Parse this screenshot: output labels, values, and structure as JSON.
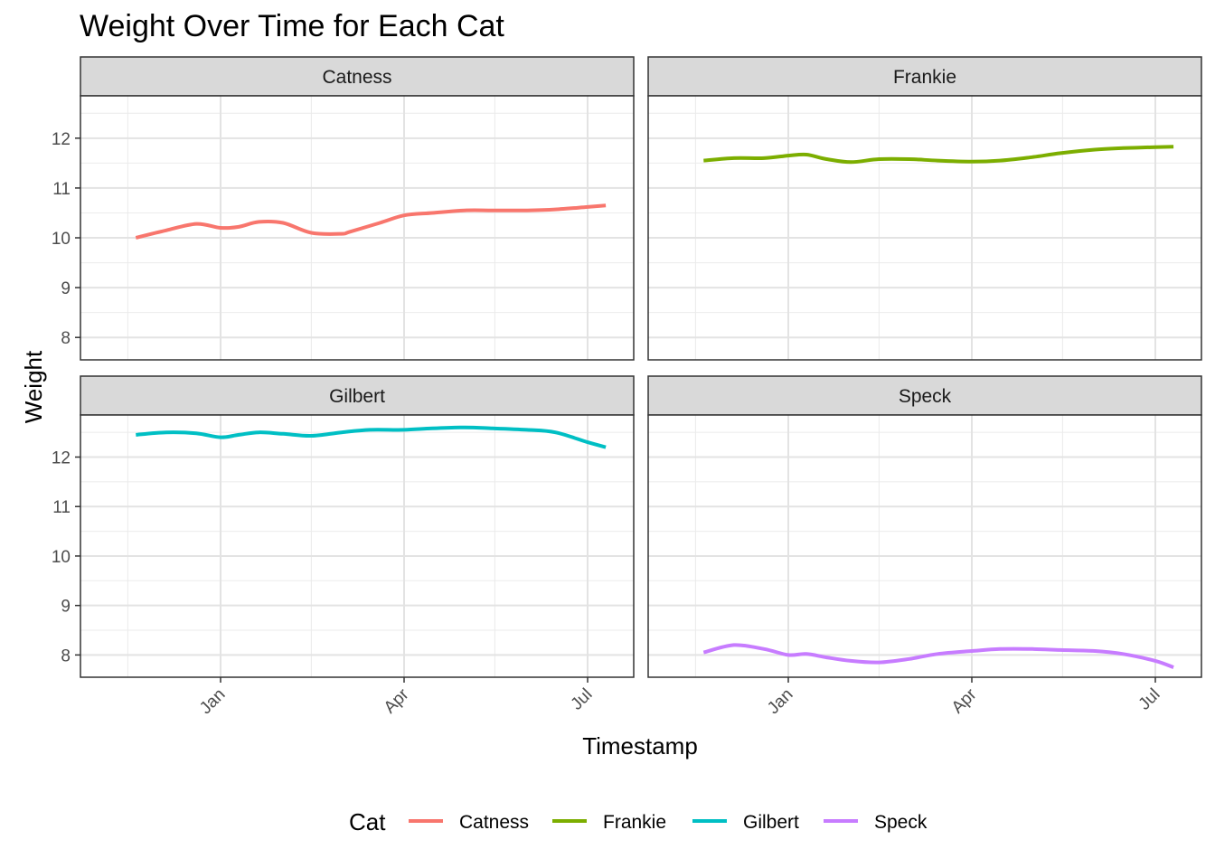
{
  "chart_data": {
    "type": "line",
    "title": "Weight Over Time for Each Cat",
    "xlabel": "Timestamp",
    "ylabel": "Weight",
    "x_ticks": [
      "Jan",
      "Apr",
      "Jul"
    ],
    "y_ticks": [
      8,
      9,
      10,
      11,
      12
    ],
    "ylim": [
      7.55,
      12.85
    ],
    "grid": true,
    "legend": {
      "title": "Cat",
      "position": "bottom"
    },
    "facets": [
      "Catness",
      "Frankie",
      "Gilbert",
      "Speck"
    ],
    "colors": {
      "Catness": "#F8766D",
      "Frankie": "#7CAE00",
      "Gilbert": "#00BFC4",
      "Speck": "#C77CFF"
    },
    "series": [
      {
        "name": "Catness",
        "x": [
          "2019-11-20",
          "2019-12-05",
          "2019-12-20",
          "2020-01-01",
          "2020-01-10",
          "2020-01-20",
          "2020-02-01",
          "2020-02-15",
          "2020-03-01",
          "2020-03-05",
          "2020-03-20",
          "2020-04-01",
          "2020-04-15",
          "2020-05-01",
          "2020-05-15",
          "2020-06-01",
          "2020-06-15",
          "2020-07-01",
          "2020-07-10"
        ],
        "values": [
          10.0,
          10.15,
          10.28,
          10.2,
          10.22,
          10.32,
          10.3,
          10.1,
          10.08,
          10.12,
          10.3,
          10.45,
          10.5,
          10.55,
          10.55,
          10.55,
          10.57,
          10.62,
          10.65
        ]
      },
      {
        "name": "Frankie",
        "x": [
          "2019-11-20",
          "2019-12-05",
          "2019-12-20",
          "2020-01-01",
          "2020-01-10",
          "2020-01-20",
          "2020-02-01",
          "2020-02-15",
          "2020-03-01",
          "2020-03-15",
          "2020-04-01",
          "2020-04-15",
          "2020-05-01",
          "2020-05-15",
          "2020-06-01",
          "2020-06-15",
          "2020-07-01",
          "2020-07-10"
        ],
        "values": [
          11.55,
          11.6,
          11.6,
          11.65,
          11.67,
          11.58,
          11.52,
          11.58,
          11.58,
          11.55,
          11.53,
          11.55,
          11.62,
          11.7,
          11.77,
          11.8,
          11.82,
          11.83
        ]
      },
      {
        "name": "Gilbert",
        "x": [
          "2019-11-20",
          "2019-12-05",
          "2019-12-20",
          "2020-01-01",
          "2020-01-10",
          "2020-01-20",
          "2020-02-01",
          "2020-02-15",
          "2020-03-01",
          "2020-03-15",
          "2020-04-01",
          "2020-04-15",
          "2020-05-01",
          "2020-05-15",
          "2020-06-01",
          "2020-06-15",
          "2020-07-01",
          "2020-07-10"
        ],
        "values": [
          12.45,
          12.5,
          12.48,
          12.4,
          12.45,
          12.5,
          12.47,
          12.43,
          12.5,
          12.55,
          12.55,
          12.58,
          12.6,
          12.58,
          12.55,
          12.5,
          12.3,
          12.2
        ]
      },
      {
        "name": "Speck",
        "x": [
          "2019-11-20",
          "2019-12-05",
          "2019-12-20",
          "2020-01-01",
          "2020-01-10",
          "2020-01-20",
          "2020-02-01",
          "2020-02-15",
          "2020-03-01",
          "2020-03-15",
          "2020-04-01",
          "2020-04-15",
          "2020-05-01",
          "2020-05-15",
          "2020-06-01",
          "2020-06-15",
          "2020-07-01",
          "2020-07-10"
        ],
        "values": [
          8.05,
          8.2,
          8.12,
          8.0,
          8.02,
          7.95,
          7.88,
          7.85,
          7.92,
          8.02,
          8.08,
          8.12,
          8.12,
          8.1,
          8.08,
          8.02,
          7.88,
          7.75
        ]
      }
    ]
  }
}
